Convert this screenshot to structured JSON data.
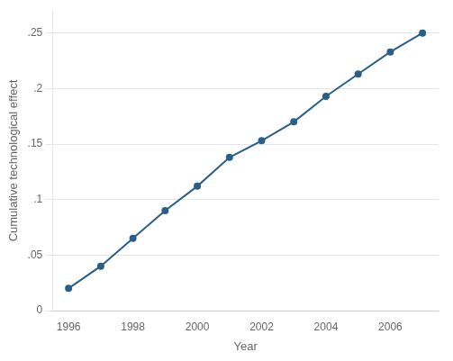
{
  "chart_data": {
    "type": "line",
    "x": [
      1996,
      1997,
      1998,
      1999,
      2000,
      2001,
      2002,
      2003,
      2004,
      2005,
      2006,
      2007
    ],
    "values": [
      0.02,
      0.04,
      0.065,
      0.09,
      0.112,
      0.138,
      0.153,
      0.17,
      0.193,
      0.213,
      0.233,
      0.25
    ],
    "color": "#2a5f8a",
    "marker": "circle",
    "xlabel": "Year",
    "ylabel": "Cumulative technological effect",
    "xlim": [
      1995.5,
      2007.5
    ],
    "ylim": [
      0,
      0.27
    ],
    "xticks": [
      1996,
      1998,
      2000,
      2002,
      2004,
      2006
    ],
    "yticks": [
      0,
      {
        "value": 0.05,
        "label": ".05"
      },
      {
        "value": 0.1,
        "label": ".1"
      },
      {
        "value": 0.15,
        "label": ".15"
      },
      {
        "value": 0.2,
        "label": ".2"
      },
      {
        "value": 0.25,
        "label": ".25"
      }
    ],
    "grid": "y"
  }
}
